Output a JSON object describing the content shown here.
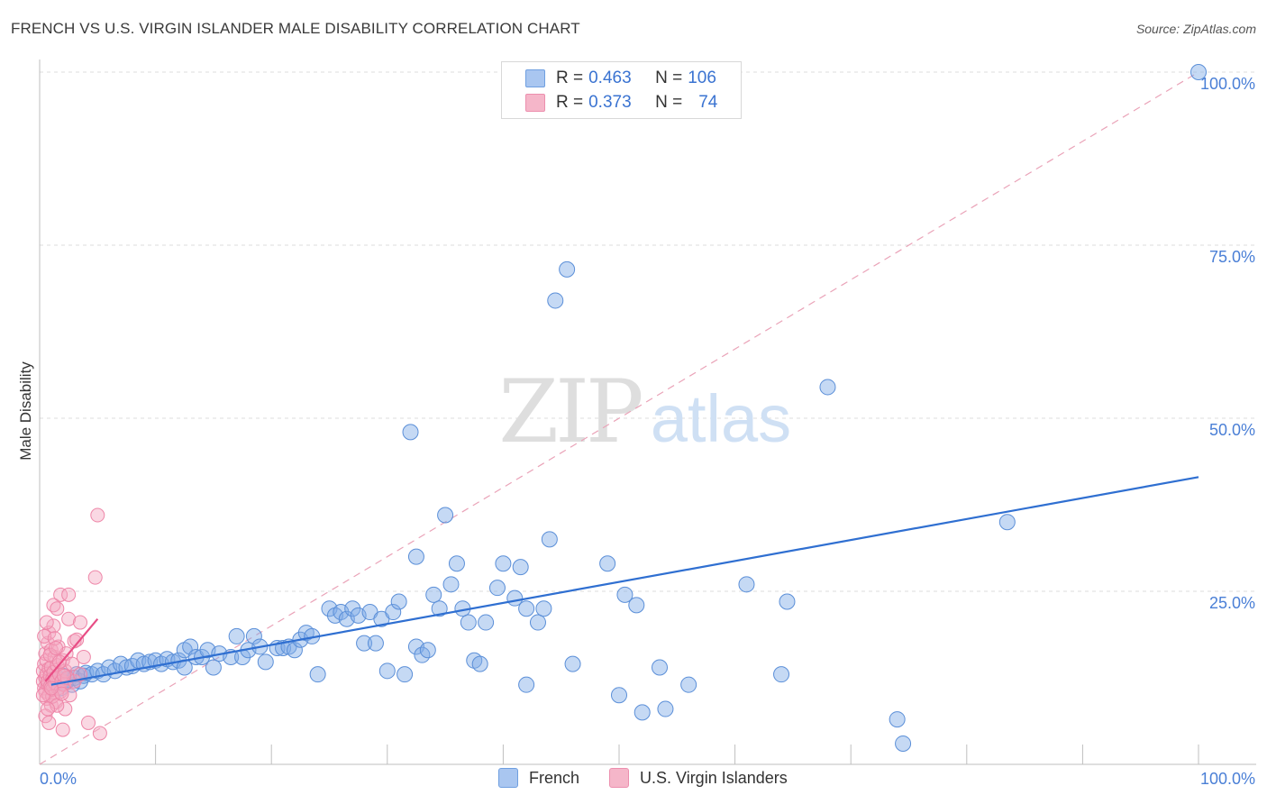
{
  "header": {
    "title": "FRENCH VS U.S. VIRGIN ISLANDER MALE DISABILITY CORRELATION CHART",
    "source": "Source: ZipAtlas.com"
  },
  "legend": {
    "rows": [
      {
        "r_label": "R =",
        "r_value": "0.463",
        "n_label": "N =",
        "n_value": "106",
        "color": "#a9c6f0"
      },
      {
        "r_label": "R =",
        "r_value": "0.373",
        "n_label": "N =",
        "n_value": "74",
        "color": "#f5b6c9"
      }
    ]
  },
  "bottom_legend": {
    "items": [
      {
        "label": "French",
        "color": "#a9c6f0"
      },
      {
        "label": "U.S. Virgin Islanders",
        "color": "#f5b6c9"
      }
    ]
  },
  "watermark": {
    "zip": "ZIP",
    "atlas": "atlas"
  },
  "chart_data": {
    "type": "scatter",
    "title": "FRENCH VS U.S. VIRGIN ISLANDER MALE DISABILITY CORRELATION CHART",
    "xlabel": "",
    "ylabel": "Male Disability",
    "xlim": [
      0,
      100
    ],
    "ylim": [
      0,
      100
    ],
    "x_tick_labels": [
      "0.0%",
      "100.0%"
    ],
    "y_tick_labels": [
      "25.0%",
      "50.0%",
      "75.0%",
      "100.0%"
    ],
    "y_ticks": [
      25,
      50,
      75,
      100
    ],
    "grid": true,
    "series": [
      {
        "name": "French",
        "color": "#7eaae6",
        "stroke": "#5b8fd8",
        "trend": {
          "x": [
            1,
            100
          ],
          "y": [
            11.5,
            41.5
          ],
          "color": "#2f6fd1"
        },
        "points": [
          [
            1.0,
            12.0
          ],
          [
            1.2,
            11.5
          ],
          [
            1.5,
            12.5
          ],
          [
            1.8,
            11.0
          ],
          [
            2.0,
            12.8
          ],
          [
            2.2,
            11.8
          ],
          [
            2.5,
            12.2
          ],
          [
            2.8,
            11.5
          ],
          [
            3.0,
            12.5
          ],
          [
            3.2,
            13.0
          ],
          [
            3.5,
            12.0
          ],
          [
            3.8,
            12.8
          ],
          [
            4.0,
            13.2
          ],
          [
            4.5,
            13.0
          ],
          [
            5.0,
            13.5
          ],
          [
            5.5,
            13.0
          ],
          [
            6.0,
            14.0
          ],
          [
            6.5,
            13.5
          ],
          [
            7.0,
            14.5
          ],
          [
            7.5,
            14.0
          ],
          [
            8.0,
            14.2
          ],
          [
            8.5,
            15.0
          ],
          [
            9.0,
            14.5
          ],
          [
            9.5,
            14.8
          ],
          [
            10.0,
            15.0
          ],
          [
            10.5,
            14.5
          ],
          [
            11.0,
            15.2
          ],
          [
            11.5,
            14.8
          ],
          [
            12.0,
            15.0
          ],
          [
            12.5,
            14.0
          ],
          [
            12.5,
            16.5
          ],
          [
            13.0,
            17.0
          ],
          [
            13.5,
            15.5
          ],
          [
            14.0,
            15.5
          ],
          [
            14.5,
            16.5
          ],
          [
            15.0,
            14.0
          ],
          [
            15.5,
            16.0
          ],
          [
            16.5,
            15.5
          ],
          [
            17.0,
            18.5
          ],
          [
            17.5,
            15.5
          ],
          [
            18.0,
            16.5
          ],
          [
            18.5,
            18.5
          ],
          [
            19.0,
            17.0
          ],
          [
            19.5,
            14.8
          ],
          [
            20.5,
            16.8
          ],
          [
            21.0,
            16.8
          ],
          [
            21.5,
            17.0
          ],
          [
            22.0,
            16.5
          ],
          [
            22.5,
            18.0
          ],
          [
            23.0,
            19.0
          ],
          [
            23.5,
            18.5
          ],
          [
            24.0,
            13.0
          ],
          [
            25.0,
            22.5
          ],
          [
            25.5,
            21.5
          ],
          [
            26.0,
            22.0
          ],
          [
            26.5,
            21.0
          ],
          [
            27.0,
            22.5
          ],
          [
            27.5,
            21.5
          ],
          [
            28.0,
            17.5
          ],
          [
            28.5,
            22.0
          ],
          [
            29.0,
            17.5
          ],
          [
            29.5,
            21.0
          ],
          [
            30.0,
            13.5
          ],
          [
            30.5,
            22.0
          ],
          [
            31.0,
            23.5
          ],
          [
            31.5,
            13.0
          ],
          [
            32.0,
            48.0
          ],
          [
            32.5,
            30.0
          ],
          [
            32.5,
            17.0
          ],
          [
            33.0,
            15.8
          ],
          [
            33.5,
            16.5
          ],
          [
            34.0,
            24.5
          ],
          [
            34.5,
            22.5
          ],
          [
            35.0,
            36.0
          ],
          [
            35.5,
            26.0
          ],
          [
            36.0,
            29.0
          ],
          [
            36.5,
            22.5
          ],
          [
            37.0,
            20.5
          ],
          [
            37.5,
            15.0
          ],
          [
            38.0,
            14.5
          ],
          [
            38.5,
            20.5
          ],
          [
            39.5,
            25.5
          ],
          [
            40.0,
            29.0
          ],
          [
            41.0,
            24.0
          ],
          [
            41.5,
            28.5
          ],
          [
            42.0,
            22.5
          ],
          [
            42.0,
            11.5
          ],
          [
            43.0,
            20.5
          ],
          [
            43.5,
            22.5
          ],
          [
            44.0,
            32.5
          ],
          [
            44.5,
            67.0
          ],
          [
            45.5,
            71.5
          ],
          [
            46.0,
            14.5
          ],
          [
            49.0,
            29.0
          ],
          [
            50.0,
            10.0
          ],
          [
            50.5,
            24.5
          ],
          [
            51.5,
            23.0
          ],
          [
            52.0,
            7.5
          ],
          [
            53.5,
            14.0
          ],
          [
            54.0,
            8.0
          ],
          [
            56.0,
            11.5
          ],
          [
            61.0,
            26.0
          ],
          [
            64.0,
            13.0
          ],
          [
            64.5,
            23.5
          ],
          [
            68.0,
            54.5
          ],
          [
            74.0,
            6.5
          ],
          [
            74.5,
            3.0
          ],
          [
            83.5,
            35.0
          ],
          [
            100.0,
            100.0
          ]
        ]
      },
      {
        "name": "U.S. Virgin Islanders",
        "color": "#f4a8c0",
        "stroke": "#ee86a8",
        "trend": {
          "x": [
            0.5,
            5
          ],
          "y": [
            12.0,
            21.0
          ],
          "color": "#e84d85"
        },
        "dashed_trend": {
          "x": [
            0,
            100
          ],
          "y": [
            0,
            100
          ],
          "color": "#eaa3b8"
        },
        "points": [
          [
            0.3,
            12.0
          ],
          [
            0.3,
            13.5
          ],
          [
            0.4,
            11.0
          ],
          [
            0.4,
            14.5
          ],
          [
            0.5,
            10.5
          ],
          [
            0.5,
            12.5
          ],
          [
            0.5,
            16.0
          ],
          [
            0.6,
            9.5
          ],
          [
            0.6,
            13.0
          ],
          [
            0.6,
            15.0
          ],
          [
            0.7,
            11.5
          ],
          [
            0.7,
            12.0
          ],
          [
            0.7,
            17.5
          ],
          [
            0.8,
            10.0
          ],
          [
            0.8,
            13.8
          ],
          [
            0.8,
            19.0
          ],
          [
            0.9,
            12.8
          ],
          [
            0.9,
            11.2
          ],
          [
            1.0,
            14.0
          ],
          [
            1.0,
            8.5
          ],
          [
            1.0,
            16.5
          ],
          [
            1.1,
            12.3
          ],
          [
            1.1,
            10.8
          ],
          [
            1.2,
            13.3
          ],
          [
            1.2,
            20.0
          ],
          [
            1.2,
            23.0
          ],
          [
            1.3,
            11.8
          ],
          [
            1.3,
            15.5
          ],
          [
            1.4,
            12.5
          ],
          [
            1.4,
            9.0
          ],
          [
            1.5,
            14.3
          ],
          [
            1.5,
            22.5
          ],
          [
            1.6,
            11.0
          ],
          [
            1.6,
            17.0
          ],
          [
            1.7,
            13.0
          ],
          [
            1.8,
            10.5
          ],
          [
            1.8,
            24.5
          ],
          [
            1.9,
            12.0
          ],
          [
            2.0,
            15.0
          ],
          [
            2.0,
            5.0
          ],
          [
            2.1,
            11.5
          ],
          [
            2.2,
            13.5
          ],
          [
            2.2,
            8.0
          ],
          [
            2.3,
            16.0
          ],
          [
            2.4,
            12.5
          ],
          [
            2.5,
            21.0
          ],
          [
            2.5,
            24.5
          ],
          [
            2.6,
            10.0
          ],
          [
            2.8,
            14.5
          ],
          [
            3.0,
            17.8
          ],
          [
            3.0,
            12.0
          ],
          [
            3.2,
            18.0
          ],
          [
            3.5,
            13.0
          ],
          [
            3.5,
            20.5
          ],
          [
            3.8,
            15.5
          ],
          [
            4.2,
            6.0
          ],
          [
            4.8,
            27.0
          ],
          [
            5.0,
            36.0
          ],
          [
            5.2,
            4.5
          ],
          [
            0.4,
            18.5
          ],
          [
            0.5,
            7.0
          ],
          [
            0.6,
            20.5
          ],
          [
            0.8,
            6.0
          ],
          [
            0.9,
            15.8
          ],
          [
            1.1,
            9.8
          ],
          [
            1.3,
            18.2
          ],
          [
            1.5,
            8.5
          ],
          [
            1.7,
            14.8
          ],
          [
            1.9,
            10.2
          ],
          [
            2.1,
            12.8
          ],
          [
            0.3,
            10.0
          ],
          [
            0.7,
            8.0
          ],
          [
            1.0,
            11.0
          ],
          [
            1.4,
            16.8
          ]
        ]
      }
    ]
  }
}
